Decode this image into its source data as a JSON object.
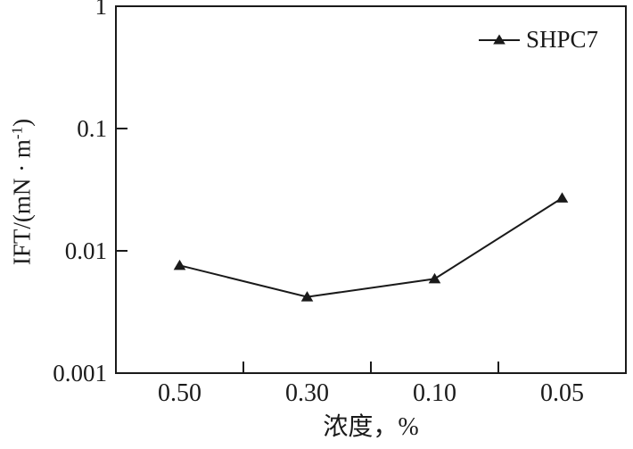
{
  "figure": {
    "background": "#ffffff",
    "axis_color": "#1a1a1a"
  },
  "chart_data": {
    "type": "line",
    "title": "",
    "xlabel": "浓度，%",
    "ylabel": "IFT/(mN · m-1)",
    "ylabel_prefix": "IFT/(mN · m",
    "ylabel_sup": "-1",
    "ylabel_suffix": ")",
    "x_categories": [
      "0.50",
      "0.30",
      "0.10",
      "0.05"
    ],
    "y_scale": "log",
    "y_range": [
      0.001,
      1
    ],
    "y_ticks": [
      "1",
      "0.1",
      "0.01",
      "0.001"
    ],
    "grid": false,
    "legend_position": "top-right",
    "series": [
      {
        "name": "SHPC7",
        "marker": "filled-triangle",
        "color": "#1a1a1a",
        "values": [
          0.0076,
          0.0042,
          0.0059,
          0.027
        ]
      }
    ]
  }
}
